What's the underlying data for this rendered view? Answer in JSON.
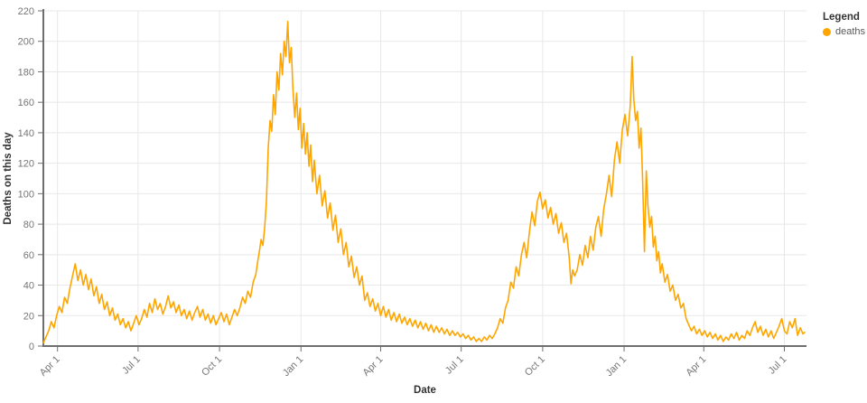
{
  "chart_data": {
    "type": "line",
    "xlabel": "Date",
    "ylabel": "Deaths on this day",
    "grid": true,
    "legend_position": "top-right",
    "legend": {
      "title": "Legend",
      "entries": [
        {
          "label": "deaths",
          "color": "#ffa500"
        }
      ]
    },
    "ylim": [
      0,
      220
    ],
    "y_ticks": [
      0,
      20,
      40,
      60,
      80,
      100,
      120,
      140,
      160,
      180,
      200,
      220
    ],
    "x_axis": {
      "description": "x values are days since the first plotted date (~mid-March 2020)",
      "domain_days": [
        0,
        862
      ],
      "ticks": [
        {
          "day": 16,
          "label": "Apr 1"
        },
        {
          "day": 107,
          "label": "Jul 1"
        },
        {
          "day": 199,
          "label": "Oct 1"
        },
        {
          "day": 291,
          "label": "Jan 1"
        },
        {
          "day": 381,
          "label": "Apr 1"
        },
        {
          "day": 472,
          "label": "Jul 1"
        },
        {
          "day": 564,
          "label": "Oct 1"
        },
        {
          "day": 656,
          "label": "Jan 1"
        },
        {
          "day": 746,
          "label": "Apr 1"
        },
        {
          "day": 837,
          "label": "Jul 1"
        }
      ]
    },
    "series": [
      {
        "name": "deaths",
        "color": "#ffa500",
        "points": [
          [
            0,
            2
          ],
          [
            3,
            6
          ],
          [
            6,
            10
          ],
          [
            9,
            16
          ],
          [
            12,
            12
          ],
          [
            15,
            20
          ],
          [
            18,
            26
          ],
          [
            21,
            22
          ],
          [
            24,
            32
          ],
          [
            27,
            28
          ],
          [
            30,
            38
          ],
          [
            33,
            46
          ],
          [
            36,
            54
          ],
          [
            39,
            43
          ],
          [
            42,
            50
          ],
          [
            45,
            40
          ],
          [
            48,
            47
          ],
          [
            51,
            37
          ],
          [
            54,
            44
          ],
          [
            57,
            33
          ],
          [
            60,
            39
          ],
          [
            63,
            28
          ],
          [
            66,
            34
          ],
          [
            69,
            24
          ],
          [
            72,
            29
          ],
          [
            75,
            20
          ],
          [
            78,
            25
          ],
          [
            81,
            17
          ],
          [
            84,
            21
          ],
          [
            87,
            14
          ],
          [
            90,
            18
          ],
          [
            93,
            12
          ],
          [
            96,
            16
          ],
          [
            99,
            10
          ],
          [
            102,
            15
          ],
          [
            105,
            20
          ],
          [
            108,
            14
          ],
          [
            111,
            18
          ],
          [
            114,
            24
          ],
          [
            117,
            19
          ],
          [
            120,
            28
          ],
          [
            123,
            22
          ],
          [
            126,
            31
          ],
          [
            129,
            24
          ],
          [
            132,
            28
          ],
          [
            135,
            21
          ],
          [
            138,
            26
          ],
          [
            141,
            33
          ],
          [
            144,
            25
          ],
          [
            147,
            29
          ],
          [
            150,
            22
          ],
          [
            153,
            27
          ],
          [
            156,
            20
          ],
          [
            159,
            24
          ],
          [
            162,
            18
          ],
          [
            165,
            23
          ],
          [
            168,
            17
          ],
          [
            171,
            22
          ],
          [
            174,
            26
          ],
          [
            177,
            19
          ],
          [
            180,
            24
          ],
          [
            183,
            17
          ],
          [
            186,
            21
          ],
          [
            189,
            15
          ],
          [
            192,
            20
          ],
          [
            195,
            14
          ],
          [
            198,
            18
          ],
          [
            201,
            22
          ],
          [
            204,
            16
          ],
          [
            207,
            21
          ],
          [
            210,
            14
          ],
          [
            213,
            19
          ],
          [
            216,
            24
          ],
          [
            219,
            20
          ],
          [
            222,
            25
          ],
          [
            225,
            32
          ],
          [
            228,
            28
          ],
          [
            231,
            36
          ],
          [
            234,
            32
          ],
          [
            237,
            42
          ],
          [
            240,
            47
          ],
          [
            242,
            55
          ],
          [
            244,
            62
          ],
          [
            246,
            70
          ],
          [
            248,
            66
          ],
          [
            250,
            78
          ],
          [
            252,
            95
          ],
          [
            254,
            130
          ],
          [
            256,
            148
          ],
          [
            258,
            141
          ],
          [
            260,
            165
          ],
          [
            262,
            152
          ],
          [
            264,
            180
          ],
          [
            266,
            168
          ],
          [
            268,
            192
          ],
          [
            270,
            178
          ],
          [
            272,
            200
          ],
          [
            274,
            190
          ],
          [
            276,
            213
          ],
          [
            278,
            186
          ],
          [
            280,
            196
          ],
          [
            282,
            168
          ],
          [
            284,
            150
          ],
          [
            286,
            166
          ],
          [
            288,
            142
          ],
          [
            290,
            156
          ],
          [
            292,
            130
          ],
          [
            294,
            146
          ],
          [
            296,
            126
          ],
          [
            298,
            140
          ],
          [
            300,
            118
          ],
          [
            302,
            132
          ],
          [
            304,
            108
          ],
          [
            306,
            122
          ],
          [
            309,
            100
          ],
          [
            312,
            112
          ],
          [
            315,
            92
          ],
          [
            318,
            102
          ],
          [
            321,
            84
          ],
          [
            324,
            94
          ],
          [
            327,
            76
          ],
          [
            330,
            86
          ],
          [
            333,
            68
          ],
          [
            336,
            77
          ],
          [
            339,
            60
          ],
          [
            342,
            68
          ],
          [
            345,
            52
          ],
          [
            348,
            59
          ],
          [
            351,
            45
          ],
          [
            354,
            52
          ],
          [
            357,
            40
          ],
          [
            360,
            46
          ],
          [
            363,
            30
          ],
          [
            366,
            35
          ],
          [
            369,
            26
          ],
          [
            372,
            31
          ],
          [
            375,
            23
          ],
          [
            378,
            28
          ],
          [
            381,
            20
          ],
          [
            384,
            26
          ],
          [
            387,
            19
          ],
          [
            390,
            24
          ],
          [
            393,
            17
          ],
          [
            396,
            22
          ],
          [
            399,
            16
          ],
          [
            402,
            21
          ],
          [
            405,
            15
          ],
          [
            408,
            19
          ],
          [
            411,
            14
          ],
          [
            414,
            18
          ],
          [
            417,
            13
          ],
          [
            420,
            17
          ],
          [
            423,
            12
          ],
          [
            426,
            16
          ],
          [
            429,
            11
          ],
          [
            432,
            15
          ],
          [
            435,
            10
          ],
          [
            438,
            14
          ],
          [
            441,
            9
          ],
          [
            444,
            13
          ],
          [
            447,
            9
          ],
          [
            450,
            12
          ],
          [
            453,
            8
          ],
          [
            456,
            11
          ],
          [
            459,
            7
          ],
          [
            462,
            10
          ],
          [
            465,
            7
          ],
          [
            468,
            9
          ],
          [
            471,
            6
          ],
          [
            474,
            8
          ],
          [
            477,
            5
          ],
          [
            480,
            7
          ],
          [
            483,
            4
          ],
          [
            486,
            6
          ],
          [
            489,
            3
          ],
          [
            492,
            5
          ],
          [
            495,
            3
          ],
          [
            498,
            6
          ],
          [
            501,
            4
          ],
          [
            504,
            7
          ],
          [
            507,
            5
          ],
          [
            510,
            8
          ],
          [
            513,
            12
          ],
          [
            516,
            18
          ],
          [
            519,
            15
          ],
          [
            522,
            25
          ],
          [
            525,
            30
          ],
          [
            528,
            42
          ],
          [
            531,
            38
          ],
          [
            534,
            52
          ],
          [
            537,
            46
          ],
          [
            540,
            60
          ],
          [
            543,
            68
          ],
          [
            546,
            58
          ],
          [
            549,
            75
          ],
          [
            552,
            88
          ],
          [
            555,
            79
          ],
          [
            558,
            95
          ],
          [
            561,
            101
          ],
          [
            564,
            90
          ],
          [
            567,
            96
          ],
          [
            570,
            84
          ],
          [
            573,
            91
          ],
          [
            576,
            80
          ],
          [
            579,
            87
          ],
          [
            582,
            74
          ],
          [
            585,
            81
          ],
          [
            588,
            68
          ],
          [
            591,
            74
          ],
          [
            594,
            58
          ],
          [
            596,
            41
          ],
          [
            598,
            50
          ],
          [
            600,
            46
          ],
          [
            603,
            50
          ],
          [
            606,
            60
          ],
          [
            609,
            53
          ],
          [
            612,
            66
          ],
          [
            615,
            58
          ],
          [
            618,
            72
          ],
          [
            621,
            63
          ],
          [
            624,
            78
          ],
          [
            627,
            85
          ],
          [
            630,
            72
          ],
          [
            633,
            90
          ],
          [
            636,
            100
          ],
          [
            639,
            112
          ],
          [
            642,
            98
          ],
          [
            645,
            122
          ],
          [
            648,
            134
          ],
          [
            651,
            120
          ],
          [
            654,
            142
          ],
          [
            657,
            152
          ],
          [
            660,
            138
          ],
          [
            663,
            158
          ],
          [
            665,
            190
          ],
          [
            667,
            162
          ],
          [
            669,
            148
          ],
          [
            671,
            154
          ],
          [
            673,
            130
          ],
          [
            675,
            143
          ],
          [
            677,
            108
          ],
          [
            679,
            62
          ],
          [
            681,
            115
          ],
          [
            683,
            92
          ],
          [
            685,
            78
          ],
          [
            687,
            85
          ],
          [
            689,
            65
          ],
          [
            691,
            72
          ],
          [
            693,
            56
          ],
          [
            695,
            62
          ],
          [
            697,
            48
          ],
          [
            699,
            54
          ],
          [
            702,
            42
          ],
          [
            705,
            47
          ],
          [
            708,
            36
          ],
          [
            711,
            40
          ],
          [
            714,
            30
          ],
          [
            717,
            34
          ],
          [
            720,
            25
          ],
          [
            723,
            28
          ],
          [
            726,
            18
          ],
          [
            729,
            14
          ],
          [
            732,
            10
          ],
          [
            735,
            13
          ],
          [
            738,
            8
          ],
          [
            741,
            11
          ],
          [
            744,
            7
          ],
          [
            747,
            10
          ],
          [
            750,
            6
          ],
          [
            753,
            9
          ],
          [
            756,
            5
          ],
          [
            759,
            8
          ],
          [
            762,
            4
          ],
          [
            765,
            7
          ],
          [
            768,
            3
          ],
          [
            771,
            6
          ],
          [
            774,
            4
          ],
          [
            777,
            8
          ],
          [
            780,
            5
          ],
          [
            783,
            9
          ],
          [
            786,
            4
          ],
          [
            789,
            7
          ],
          [
            792,
            5
          ],
          [
            795,
            10
          ],
          [
            798,
            7
          ],
          [
            801,
            12
          ],
          [
            804,
            16
          ],
          [
            807,
            9
          ],
          [
            810,
            13
          ],
          [
            813,
            7
          ],
          [
            816,
            11
          ],
          [
            819,
            6
          ],
          [
            822,
            10
          ],
          [
            825,
            5
          ],
          [
            828,
            9
          ],
          [
            831,
            13
          ],
          [
            834,
            18
          ],
          [
            837,
            10
          ],
          [
            840,
            8
          ],
          [
            843,
            16
          ],
          [
            846,
            12
          ],
          [
            849,
            18
          ],
          [
            852,
            7
          ],
          [
            855,
            12
          ],
          [
            858,
            8
          ],
          [
            860,
            9
          ]
        ]
      }
    ]
  },
  "style": {
    "grid_color": "#e8e8e8",
    "axis_color": "#6f6f6f",
    "tick_label_color": "#767676",
    "title_color": "#333333"
  }
}
